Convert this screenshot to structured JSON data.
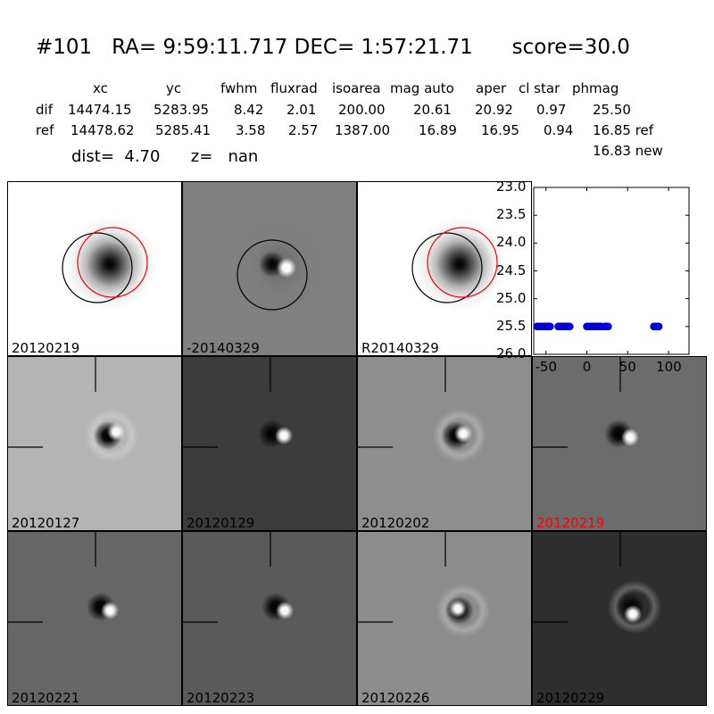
{
  "header": {
    "title": "#101   RA= 9:59:11.717 DEC= 1:57:21.71      score=30.0",
    "columns": [
      "xc",
      "yc",
      "fwhm",
      "fluxrad",
      "isoarea",
      "mag auto",
      "aper",
      "cl star",
      "phmag"
    ],
    "rows": [
      {
        "name": "dif",
        "values": [
          "14474.15",
          "5283.95",
          "8.42",
          "2.01",
          "200.00",
          "20.61",
          "20.92",
          "0.97",
          "25.50"
        ]
      },
      {
        "name": "ref",
        "values": [
          "14478.62",
          "5285.41",
          "3.58",
          "2.57",
          "1387.00",
          "16.89",
          "16.95",
          "0.94",
          "16.85 ref"
        ]
      }
    ],
    "phmag_new": "16.83 new",
    "dist_line": "dist=  4.70      z=   nan"
  },
  "panels_top": [
    {
      "label": "20120219",
      "label_color": "#000000"
    },
    {
      "label": "-20140329",
      "label_color": "#000000"
    },
    {
      "label": "R20140329",
      "label_color": "#000000"
    }
  ],
  "panels_grid": [
    {
      "label": "20120127",
      "label_color": "#000000"
    },
    {
      "label": "20120129",
      "label_color": "#000000"
    },
    {
      "label": "20120202",
      "label_color": "#000000"
    },
    {
      "label": "20120219",
      "label_color": "#ff0000"
    },
    {
      "label": "20120221",
      "label_color": "#000000"
    },
    {
      "label": "20120223",
      "label_color": "#000000"
    },
    {
      "label": "20120226",
      "label_color": "#000000"
    },
    {
      "label": "20120229",
      "label_color": "#000000"
    }
  ],
  "chart_data": {
    "type": "scatter",
    "title": "",
    "xlabel": "",
    "ylabel": "",
    "xlim": [
      -65,
      125
    ],
    "ylim": [
      26.0,
      23.0
    ],
    "y_inverted": true,
    "x_ticks": [
      "-50",
      "0",
      "50",
      "100"
    ],
    "y_ticks": [
      "23.0",
      "23.5",
      "24.0",
      "24.5",
      "25.0",
      "25.5",
      "26.0"
    ],
    "marker_color": "#0000ff",
    "series": [
      {
        "x": [
          -61,
          -59,
          -57,
          -55,
          -53,
          -51,
          -49,
          -47,
          -45,
          -35,
          -33,
          -31,
          -29,
          -27,
          -25,
          -23,
          -21,
          0,
          2,
          4,
          6,
          8,
          10,
          12,
          14,
          16,
          18,
          22,
          24,
          26,
          82,
          84,
          86,
          88
        ],
        "y": [
          25.5,
          25.5,
          25.5,
          25.5,
          25.5,
          25.5,
          25.5,
          25.5,
          25.5,
          25.5,
          25.5,
          25.5,
          25.5,
          25.5,
          25.5,
          25.5,
          25.5,
          25.5,
          25.5,
          25.5,
          25.5,
          25.5,
          25.5,
          25.5,
          25.5,
          25.5,
          25.5,
          25.5,
          25.5,
          25.5,
          25.5,
          25.5,
          25.5,
          25.5
        ]
      }
    ]
  }
}
